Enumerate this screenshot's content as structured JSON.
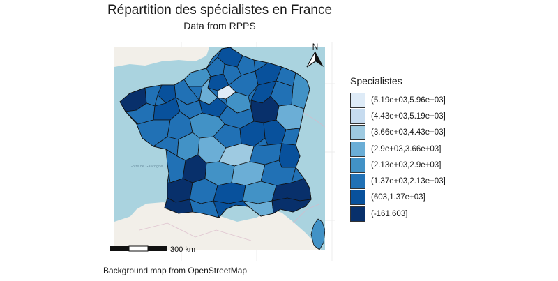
{
  "title": "Répartition des spécialistes en France",
  "subtitle": "Data from RPPS",
  "caption": "Background map from OpenStreetMap",
  "scale_bar": {
    "label": "300 km"
  },
  "north_arrow": {
    "label": "N"
  },
  "basemap": {
    "sea_label": "Golfe de Gascogne"
  },
  "legend": {
    "title": "Specialistes",
    "classes": [
      {
        "label": "(5.19e+03,5.96e+03]",
        "color": "#deebf7"
      },
      {
        "label": "(4.43e+03,5.19e+03]",
        "color": "#c6dbef"
      },
      {
        "label": "(3.66e+03,4.43e+03]",
        "color": "#9ecae1"
      },
      {
        "label": "(2.9e+03,3.66e+03]",
        "color": "#6baed6"
      },
      {
        "label": "(2.13e+03,2.9e+03]",
        "color": "#4292c6"
      },
      {
        "label": "(1.37e+03,2.13e+03]",
        "color": "#2171b5"
      },
      {
        "label": "(603,1.37e+03]",
        "color": "#08519c"
      },
      {
        "label": "(-161,603]",
        "color": "#08306b"
      }
    ]
  },
  "colors": {
    "sea": "#aad3df",
    "land": "#f2efe9",
    "border": "#1a1a1a"
  }
}
